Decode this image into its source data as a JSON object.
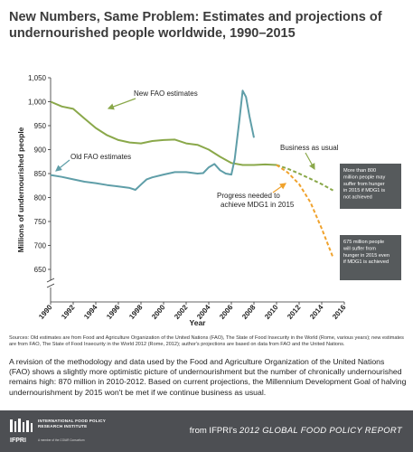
{
  "title": "New Numbers, Same Problem: Estimates and projections of undernourished people worldwide, 1990–2015",
  "chart_data": {
    "type": "line",
    "ylabel": "Millions of undernourished people",
    "xlabel": "Year",
    "xlim": [
      1990,
      2016
    ],
    "ylim": [
      650,
      1050
    ],
    "axis_break": true,
    "yticks": [
      "650",
      "700",
      "750",
      "800",
      "850",
      "900",
      "950",
      "1,000",
      "1,050"
    ],
    "xticks": [
      "1990",
      "1992",
      "1994",
      "1996",
      "1998",
      "2000",
      "2002",
      "2004",
      "2006",
      "2008",
      "2010",
      "2012",
      "2014",
      "2016"
    ],
    "grid": false,
    "series": [
      {
        "name": "New FAO estimates",
        "color": "#8aa84a",
        "x": [
          1990,
          1991,
          1992,
          1993,
          1994,
          1995,
          1996,
          1997,
          1998,
          1999,
          2000,
          2001,
          2002,
          2003,
          2004,
          2005,
          2006,
          2007,
          2008,
          2009,
          2010
        ],
        "values": [
          1000,
          990,
          985,
          965,
          945,
          930,
          920,
          915,
          913,
          918,
          920,
          921,
          913,
          910,
          900,
          885,
          872,
          868,
          868,
          869,
          868
        ]
      },
      {
        "name": "Old FAO estimates",
        "color": "#5f9ea8",
        "x": [
          1990,
          1991,
          1992,
          1993,
          1994,
          1995,
          1996,
          1997,
          1997.5,
          1998,
          1998.5,
          1999,
          2000,
          2001,
          2002,
          2003,
          2003.5,
          2004,
          2004.5,
          2005,
          2005.5,
          2006,
          2006.3,
          2006.7,
          2007,
          2007.3,
          2007.6,
          2008
        ],
        "values": [
          847,
          843,
          838,
          833,
          830,
          826,
          823,
          820,
          816,
          827,
          838,
          842,
          848,
          853,
          853,
          850,
          851,
          863,
          870,
          857,
          850,
          848,
          880,
          960,
          1023,
          1010,
          970,
          925
        ]
      },
      {
        "name": "Business as usual",
        "color": "#8aa84a",
        "dashed": true,
        "x": [
          2010,
          2011,
          2012,
          2013,
          2014,
          2015
        ],
        "values": [
          868,
          860,
          850,
          839,
          828,
          815
        ]
      },
      {
        "name": "Progress needed to achieve MDG1 in 2015",
        "color": "#f0a22c",
        "dashed": true,
        "x": [
          2010,
          2011,
          2012,
          2013,
          2014,
          2015
        ],
        "values": [
          868,
          852,
          828,
          790,
          735,
          675
        ]
      }
    ],
    "annotations": [
      {
        "text": "New FAO estimates"
      },
      {
        "text": "Old FAO estimates"
      },
      {
        "text": "Business as usual"
      },
      {
        "text": "Progress needed to achieve MDG1 in 2015"
      }
    ],
    "callouts": [
      {
        "text": "More than 800 million people may suffer from hunger in 2015 if MDG1 is not achieved",
        "color": "#565a5c"
      },
      {
        "text": "675 million people will suffer from hunger in 2015 even if MDG1 is achieved",
        "color": "#565a5c"
      }
    ]
  },
  "sources": "Sources: Old estimates are from Food and Agriculture Organization of the United Nations (FAO), The State of Food Insecurity in the World (Rome, various years); new estimates are from FAO, The State of Food Insecurity in the World 2012 (Rome, 2012); author's projections are based on data from FAO and the United Nations.",
  "summary": "A revision of the methodology and data used by the Food and Agriculture Organization of the United Nations (FAO) shows a slightly more optimistic picture of undernourishment but the number of chronically undernourished remains high: 870 million in 2010-2012. Based on current projections, the Millennium Development Goal of halving undernourishment by 2015 won't be met if we continue business as usual.",
  "footer": {
    "org_line1": "INTERNATIONAL FOOD POLICY",
    "org_line2": "RESEARCH INSTITUTE",
    "org_sub": "A member of the CGIAR Consortium",
    "logo_text": "IFPRI",
    "report_prefix": "from IFPRI's ",
    "report_title": "2012 GLOBAL FOOD POLICY REPORT"
  },
  "colors": {
    "footer_bg": "#4d4f53",
    "title": "#3b3b3b"
  }
}
